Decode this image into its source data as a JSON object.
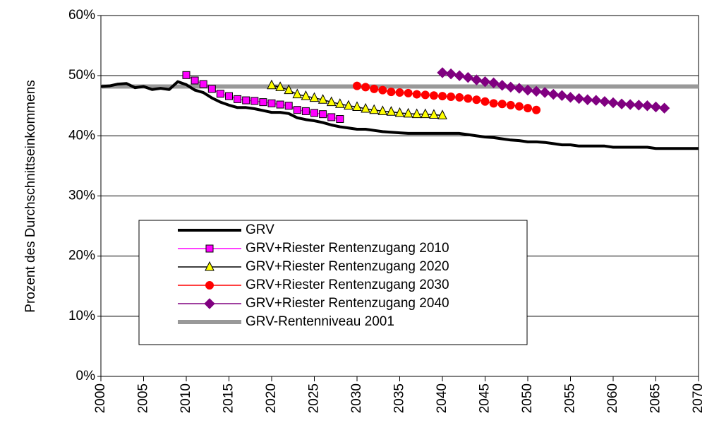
{
  "chart_data": {
    "type": "line",
    "y_label": "Prozent des Durchschnittseinkommens",
    "xlim": [
      2000,
      2070
    ],
    "xticks": [
      2000,
      2005,
      2010,
      2015,
      2020,
      2025,
      2030,
      2035,
      2040,
      2045,
      2050,
      2055,
      2060,
      2065,
      2070
    ],
    "ylim": [
      0,
      60
    ],
    "yticks": [
      {
        "value": 0,
        "label": "0%"
      },
      {
        "value": 10,
        "label": "10%"
      },
      {
        "value": 20,
        "label": "20%"
      },
      {
        "value": 30,
        "label": "30%"
      },
      {
        "value": 40,
        "label": "40%"
      },
      {
        "value": 50,
        "label": "50%"
      },
      {
        "value": 60,
        "label": "60%"
      }
    ],
    "grid": true,
    "legend": "lower-left",
    "series": [
      {
        "name": "GRV",
        "color": "#000000",
        "marker": "none",
        "linestyle": "bold",
        "x": [
          2000,
          2001,
          2002,
          2003,
          2004,
          2005,
          2006,
          2007,
          2008,
          2009,
          2010,
          2011,
          2012,
          2013,
          2014,
          2015,
          2016,
          2017,
          2018,
          2019,
          2020,
          2021,
          2022,
          2023,
          2024,
          2025,
          2026,
          2027,
          2028,
          2029,
          2030,
          2031,
          2032,
          2033,
          2034,
          2035,
          2036,
          2037,
          2038,
          2039,
          2040,
          2041,
          2042,
          2043,
          2044,
          2045,
          2046,
          2047,
          2048,
          2049,
          2050,
          2051,
          2052,
          2053,
          2054,
          2055,
          2056,
          2057,
          2058,
          2059,
          2060,
          2061,
          2062,
          2063,
          2064,
          2065,
          2066,
          2067,
          2068,
          2069,
          2070
        ],
        "values": [
          48.2,
          48.3,
          48.6,
          48.7,
          48.0,
          48.2,
          47.7,
          47.9,
          47.7,
          49.0,
          48.5,
          47.6,
          47.2,
          46.3,
          45.6,
          45.1,
          44.7,
          44.7,
          44.5,
          44.2,
          43.9,
          43.9,
          43.7,
          43.0,
          42.7,
          42.5,
          42.2,
          41.8,
          41.5,
          41.3,
          41.1,
          41.1,
          40.9,
          40.7,
          40.6,
          40.5,
          40.4,
          40.4,
          40.4,
          40.4,
          40.4,
          40.4,
          40.4,
          40.2,
          40.0,
          39.8,
          39.7,
          39.5,
          39.3,
          39.2,
          39.0,
          39.0,
          38.9,
          38.7,
          38.5,
          38.5,
          38.3,
          38.3,
          38.3,
          38.3,
          38.1,
          38.1,
          38.1,
          38.1,
          38.1,
          37.9,
          37.9,
          37.9,
          37.9,
          37.9,
          37.9
        ]
      },
      {
        "name": "GRV+Riester Rentenzugang 2010",
        "color": "#ff00ff",
        "marker": "square",
        "linestyle": "normal",
        "x": [
          2010,
          2011,
          2012,
          2013,
          2014,
          2015,
          2016,
          2017,
          2018,
          2019,
          2020,
          2021,
          2022,
          2023,
          2024,
          2025,
          2026,
          2027,
          2028
        ],
        "values": [
          50.1,
          49.2,
          48.6,
          47.8,
          47.0,
          46.6,
          46.1,
          45.9,
          45.8,
          45.6,
          45.4,
          45.2,
          45.0,
          44.3,
          44.1,
          43.8,
          43.6,
          43.1,
          42.8
        ]
      },
      {
        "name": "GRV+Riester Rentenzugang 2020",
        "color": "#000000",
        "marker_color": "#ffff00",
        "marker": "triangle",
        "linestyle": "normal",
        "x": [
          2020,
          2021,
          2022,
          2023,
          2024,
          2025,
          2026,
          2027,
          2028,
          2029,
          2030,
          2031,
          2032,
          2033,
          2034,
          2035,
          2036,
          2037,
          2038,
          2039,
          2040
        ],
        "values": [
          48.4,
          48.1,
          47.6,
          46.9,
          46.6,
          46.3,
          46.0,
          45.6,
          45.3,
          45.0,
          44.8,
          44.5,
          44.3,
          44.1,
          44.0,
          43.8,
          43.7,
          43.6,
          43.6,
          43.5,
          43.4
        ]
      },
      {
        "name": "GRV+Riester Rentenzugang 2030",
        "color": "#ff0000",
        "marker": "circle",
        "linestyle": "normal",
        "x": [
          2030,
          2031,
          2032,
          2033,
          2034,
          2035,
          2036,
          2037,
          2038,
          2039,
          2040,
          2041,
          2042,
          2043,
          2044,
          2045,
          2046,
          2047,
          2048,
          2049,
          2050,
          2051
        ],
        "values": [
          48.3,
          48.1,
          47.8,
          47.6,
          47.3,
          47.2,
          47.1,
          46.9,
          46.8,
          46.7,
          46.6,
          46.5,
          46.4,
          46.2,
          46.0,
          45.7,
          45.4,
          45.3,
          45.1,
          44.9,
          44.6,
          44.3
        ]
      },
      {
        "name": "GRV+Riester Rentenzugang 2040",
        "color": "#800080",
        "marker": "diamond",
        "linestyle": "normal",
        "x": [
          2040,
          2041,
          2042,
          2043,
          2044,
          2045,
          2046,
          2047,
          2048,
          2049,
          2050,
          2051,
          2052,
          2053,
          2054,
          2055,
          2056,
          2057,
          2058,
          2059,
          2060,
          2061,
          2062,
          2063,
          2064,
          2065,
          2066
        ],
        "values": [
          50.5,
          50.3,
          50.0,
          49.7,
          49.3,
          49.0,
          48.8,
          48.4,
          48.1,
          47.9,
          47.6,
          47.4,
          47.2,
          46.9,
          46.7,
          46.4,
          46.2,
          46.0,
          45.9,
          45.7,
          45.5,
          45.3,
          45.2,
          45.1,
          45.0,
          44.8,
          44.6
        ]
      },
      {
        "name": "GRV-Rentenniveau 2001",
        "color": "#999999",
        "marker": "none",
        "linestyle": "band",
        "x": [
          2000,
          2070
        ],
        "values": [
          48.2,
          48.2
        ]
      }
    ]
  }
}
